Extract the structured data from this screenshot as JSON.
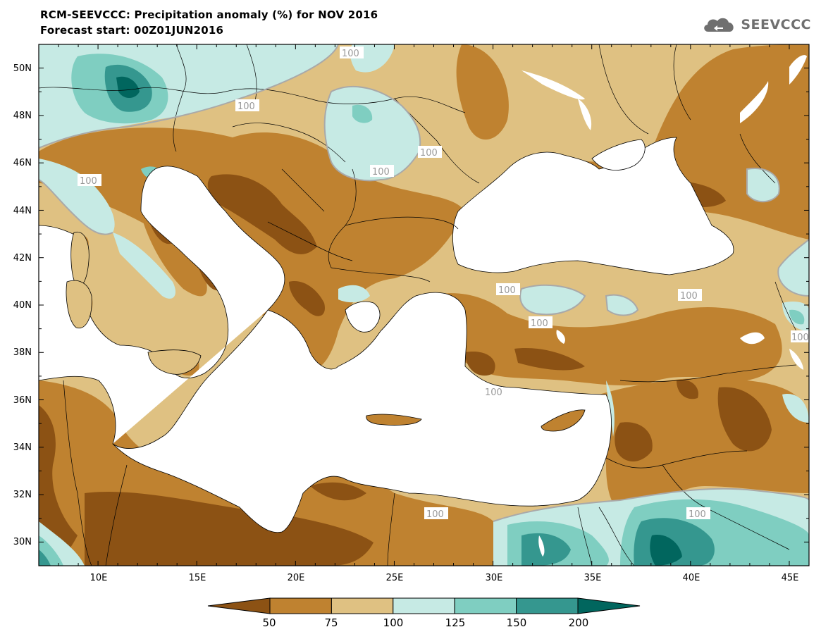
{
  "header": {
    "title": "RCM-SEEVCCC: Precipitation anomaly (%) for NOV 2016",
    "subtitle": "Forecast start: 00Z01JUN2016",
    "logo_text": "SEEVCCC"
  },
  "map": {
    "lon_range": [
      7,
      46
    ],
    "lat_range": [
      29,
      51
    ],
    "lon_ticks": [
      "10E",
      "15E",
      "20E",
      "25E",
      "30E",
      "35E",
      "40E",
      "45E"
    ],
    "lat_ticks": [
      "50N",
      "48N",
      "46N",
      "44N",
      "42N",
      "40N",
      "38N",
      "36N",
      "34N",
      "32N",
      "30N"
    ],
    "contour_labels": [
      "100",
      "100",
      "100",
      "100",
      "100",
      "100",
      "100",
      "100",
      "100",
      "100",
      "100",
      "100"
    ]
  },
  "colorbar": {
    "levels": [
      "50",
      "75",
      "100",
      "125",
      "150",
      "200"
    ],
    "colors": [
      "#8c5214",
      "#bf8230",
      "#dfc182",
      "#c6eae4",
      "#7fcec1",
      "#35978f",
      "#01665e"
    ]
  }
}
